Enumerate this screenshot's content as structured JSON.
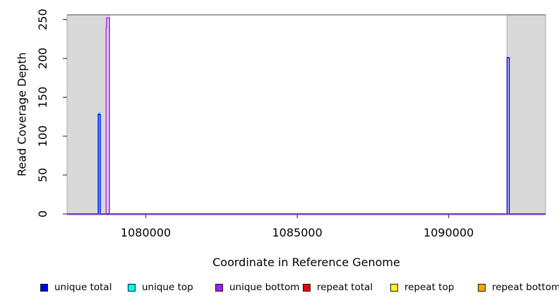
{
  "chart_data": {
    "type": "line",
    "title": "",
    "xlabel": "Coordinate in Reference Genome",
    "ylabel": "Read Coverage Depth",
    "xlim": [
      1077400,
      1093200
    ],
    "ylim": [
      0,
      256
    ],
    "xticks": [
      1080000,
      1085000,
      1090000
    ],
    "yticks": [
      0,
      50,
      100,
      150,
      200,
      250
    ],
    "grid": false,
    "legend_position": "bottom",
    "shaded_regions": [
      {
        "x0": 1077400,
        "x1": 1078810,
        "fill": "#d9d9d9",
        "stroke": "#ababab"
      },
      {
        "x0": 1091925,
        "x1": 1093200,
        "fill": "#d9d9d9",
        "stroke": "#ababab"
      }
    ],
    "top_border_color": "#808080",
    "tick_color": "#4d4d4d",
    "series": [
      {
        "name": "repeat total",
        "color": "#ff0000",
        "points": [
          [
            1077400,
            0
          ],
          [
            1093200,
            0
          ]
        ]
      },
      {
        "name": "repeat top",
        "color": "#ffff00",
        "points": [
          [
            1077400,
            0
          ],
          [
            1093200,
            0
          ]
        ]
      },
      {
        "name": "repeat bottom",
        "color": "#ffa500",
        "points": [
          [
            1077400,
            0
          ],
          [
            1093200,
            0
          ]
        ]
      },
      {
        "name": "unique top",
        "color": "#00ffff",
        "points": [
          [
            1077400,
            0
          ],
          [
            1078445,
            0
          ],
          [
            1078445,
            130
          ],
          [
            1078482,
            130
          ],
          [
            1078482,
            0
          ],
          [
            1093200,
            0
          ]
        ]
      },
      {
        "name": "unique total",
        "color": "#0000ee",
        "points": [
          [
            1077400,
            0
          ],
          [
            1078430,
            0
          ],
          [
            1078430,
            128
          ],
          [
            1078495,
            128
          ],
          [
            1078495,
            0
          ],
          [
            1091930,
            0
          ],
          [
            1091930,
            201
          ],
          [
            1092000,
            201
          ],
          [
            1092000,
            0
          ],
          [
            1093200,
            0
          ]
        ]
      },
      {
        "name": "unique bottom",
        "color": "#a020f0",
        "points": [
          [
            1077400,
            0
          ],
          [
            1078690,
            0
          ],
          [
            1078690,
            240
          ],
          [
            1078706,
            240
          ],
          [
            1078706,
            252
          ],
          [
            1078795,
            252
          ],
          [
            1078795,
            0
          ],
          [
            1093200,
            0
          ]
        ]
      }
    ]
  },
  "legend": {
    "items": [
      {
        "label": "unique total",
        "color": "#0000ee"
      },
      {
        "label": "unique top",
        "color": "#00ffff"
      },
      {
        "label": "unique bottom",
        "color": "#a020f0"
      },
      {
        "label": "repeat total",
        "color": "#ee0000"
      },
      {
        "label": "repeat top",
        "color": "#ffff00"
      },
      {
        "label": "repeat bottom",
        "color": "#ffa500"
      }
    ]
  }
}
